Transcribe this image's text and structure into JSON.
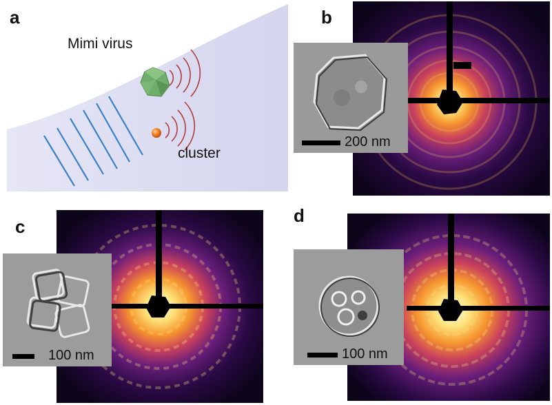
{
  "figure": {
    "panel_a": {
      "letter": "a",
      "virus_label": "Mimi virus",
      "cluster_label": "cluster",
      "colors": {
        "beam": "#dcdcf2",
        "wavefront": "#3b7fc4",
        "scatter": "#b03a3a",
        "virus": "#6fae6b",
        "cluster": "#f07a1e"
      }
    },
    "panel_b": {
      "letter": "b",
      "scale_label": "200 nm"
    },
    "panel_c": {
      "letter": "c",
      "scale_label": "100 nm"
    },
    "panel_d": {
      "letter": "d",
      "scale_label": "100 nm"
    },
    "colormap": [
      "#000000",
      "#2a0a45",
      "#6a1e7a",
      "#b93a64",
      "#f0772f",
      "#fcd35a",
      "#fffbe6"
    ]
  }
}
